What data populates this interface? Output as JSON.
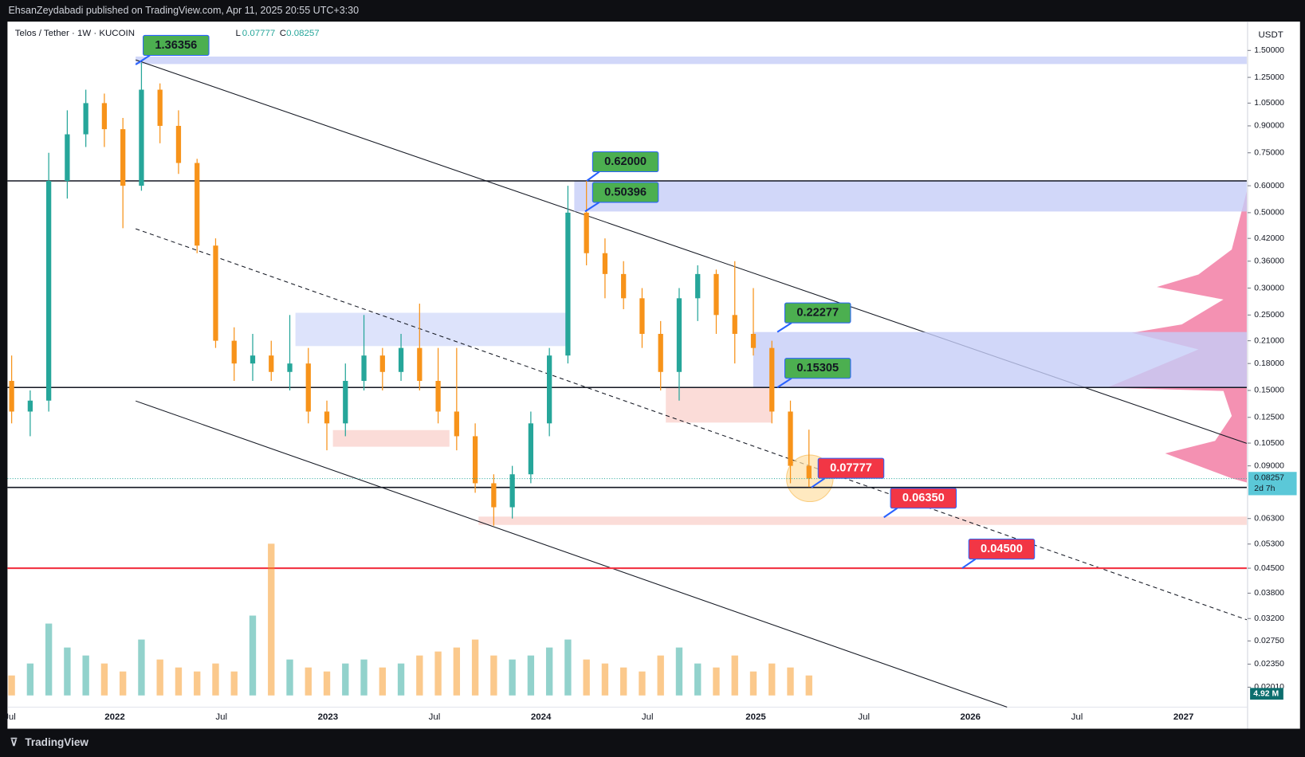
{
  "header": {
    "publisher": "EhsanZeydabadi published on TradingView.com, Apr 11, 2025 20:55 UTC+3:30"
  },
  "symbol": {
    "name": "Telos / Tether · 1W · KUCOIN",
    "low_key": "L",
    "low": {
      "value": 0.07777,
      "label": "0.07777"
    },
    "close_key": "C",
    "close": {
      "value": 0.08257,
      "label": "0.08257"
    }
  },
  "price_axis": {
    "currency": "USDT",
    "log_scale": true,
    "ticks": [
      {
        "value": 1.5,
        "label": "1.50000"
      },
      {
        "value": 1.25,
        "label": "1.25000"
      },
      {
        "value": 1.05,
        "label": "1.05000"
      },
      {
        "value": 0.9,
        "label": "0.90000"
      },
      {
        "value": 0.75,
        "label": "0.75000"
      },
      {
        "value": 0.6,
        "label": "0.60000"
      },
      {
        "value": 0.5,
        "label": "0.50000"
      },
      {
        "value": 0.42,
        "label": "0.42000"
      },
      {
        "value": 0.36,
        "label": "0.36000"
      },
      {
        "value": 0.3,
        "label": "0.30000"
      },
      {
        "value": 0.25,
        "label": "0.25000"
      },
      {
        "value": 0.21,
        "label": "0.21000"
      },
      {
        "value": 0.18,
        "label": "0.18000"
      },
      {
        "value": 0.15,
        "label": "0.15000"
      },
      {
        "value": 0.125,
        "label": "0.12500"
      },
      {
        "value": 0.105,
        "label": "0.10500"
      },
      {
        "value": 0.09,
        "label": "0.09000"
      },
      {
        "value": 0.063,
        "label": "0.06300"
      },
      {
        "value": 0.053,
        "label": "0.05300"
      },
      {
        "value": 0.045,
        "label": "0.04500"
      },
      {
        "value": 0.038,
        "label": "0.03800"
      },
      {
        "value": 0.032,
        "label": "0.03200"
      },
      {
        "value": 0.0275,
        "label": "0.02750"
      },
      {
        "value": 0.0235,
        "label": "0.02350"
      },
      {
        "value": 0.0201,
        "label": "0.02010"
      }
    ],
    "last_price": {
      "value": 0.08257,
      "label": "0.08257"
    },
    "countdown": "2d 7h"
  },
  "time_axis": {
    "labels": [
      "Jul",
      "2022",
      "Jul",
      "2023",
      "Jul",
      "2024",
      "Jul",
      "2025",
      "Jul",
      "2026",
      "Jul",
      "2027"
    ]
  },
  "candles": [
    [
      0.16,
      0.19,
      0.12,
      0.13
    ],
    [
      0.13,
      0.15,
      0.11,
      0.14
    ],
    [
      0.14,
      0.75,
      0.13,
      0.62
    ],
    [
      0.62,
      1.0,
      0.55,
      0.85
    ],
    [
      0.85,
      1.15,
      0.78,
      1.05
    ],
    [
      1.05,
      1.12,
      0.78,
      0.88
    ],
    [
      0.88,
      0.95,
      0.45,
      0.6
    ],
    [
      0.6,
      1.38,
      0.58,
      1.15
    ],
    [
      1.15,
      1.2,
      0.8,
      0.9
    ],
    [
      0.9,
      1.0,
      0.65,
      0.7
    ],
    [
      0.7,
      0.72,
      0.38,
      0.4
    ],
    [
      0.4,
      0.42,
      0.2,
      0.21
    ],
    [
      0.21,
      0.23,
      0.16,
      0.18
    ],
    [
      0.18,
      0.22,
      0.16,
      0.19
    ],
    [
      0.19,
      0.21,
      0.16,
      0.17
    ],
    [
      0.17,
      0.25,
      0.15,
      0.18
    ],
    [
      0.18,
      0.2,
      0.12,
      0.13
    ],
    [
      0.13,
      0.14,
      0.1,
      0.12
    ],
    [
      0.12,
      0.18,
      0.11,
      0.16
    ],
    [
      0.16,
      0.25,
      0.15,
      0.19
    ],
    [
      0.19,
      0.2,
      0.15,
      0.17
    ],
    [
      0.17,
      0.22,
      0.16,
      0.2
    ],
    [
      0.2,
      0.27,
      0.15,
      0.16
    ],
    [
      0.16,
      0.2,
      0.12,
      0.13
    ],
    [
      0.13,
      0.2,
      0.1,
      0.11
    ],
    [
      0.11,
      0.12,
      0.075,
      0.08
    ],
    [
      0.08,
      0.085,
      0.06,
      0.068
    ],
    [
      0.068,
      0.09,
      0.063,
      0.085
    ],
    [
      0.085,
      0.13,
      0.08,
      0.12
    ],
    [
      0.12,
      0.2,
      0.11,
      0.19
    ],
    [
      0.19,
      0.6,
      0.18,
      0.5
    ],
    [
      0.5,
      0.62,
      0.35,
      0.38
    ],
    [
      0.38,
      0.42,
      0.28,
      0.33
    ],
    [
      0.33,
      0.36,
      0.26,
      0.28
    ],
    [
      0.28,
      0.3,
      0.2,
      0.22
    ],
    [
      0.22,
      0.24,
      0.15,
      0.17
    ],
    [
      0.17,
      0.3,
      0.14,
      0.28
    ],
    [
      0.28,
      0.35,
      0.24,
      0.33
    ],
    [
      0.33,
      0.34,
      0.22,
      0.25
    ],
    [
      0.25,
      0.36,
      0.18,
      0.22
    ],
    [
      0.22,
      0.3,
      0.19,
      0.2
    ],
    [
      0.2,
      0.21,
      0.12,
      0.13
    ],
    [
      0.13,
      0.14,
      0.08,
      0.09
    ],
    [
      0.09,
      0.115,
      0.078,
      0.08257
    ]
  ],
  "up_color": "#26a69a",
  "down_color": "#f7931a",
  "volume": {
    "values": [
      5,
      8,
      18,
      12,
      10,
      8,
      6,
      14,
      9,
      7,
      6,
      8,
      6,
      20,
      38,
      9,
      7,
      6,
      8,
      9,
      7,
      8,
      10,
      11,
      12,
      14,
      10,
      9,
      10,
      12,
      14,
      9,
      8,
      7,
      6,
      10,
      12,
      8,
      7,
      10,
      6,
      8,
      7,
      5
    ],
    "last_label": "4.92 M"
  },
  "annotations": [
    {
      "value": 1.36356,
      "label": "1.36356",
      "color": "#4caf50"
    },
    {
      "value": 0.62,
      "label": "0.62000",
      "color": "#4caf50"
    },
    {
      "value": 0.50396,
      "label": "0.50396",
      "color": "#4caf50"
    },
    {
      "value": 0.22277,
      "label": "0.22277",
      "color": "#4caf50"
    },
    {
      "value": 0.15305,
      "label": "0.15305",
      "color": "#4caf50"
    },
    {
      "value": 0.07777,
      "label": "0.07777",
      "color": "#f23645"
    },
    {
      "value": 0.0635,
      "label": "0.06350",
      "color": "#f23645"
    },
    {
      "value": 0.045,
      "label": "0.04500",
      "color": "#f23645"
    }
  ],
  "footer": {
    "brand": "TradingView"
  }
}
